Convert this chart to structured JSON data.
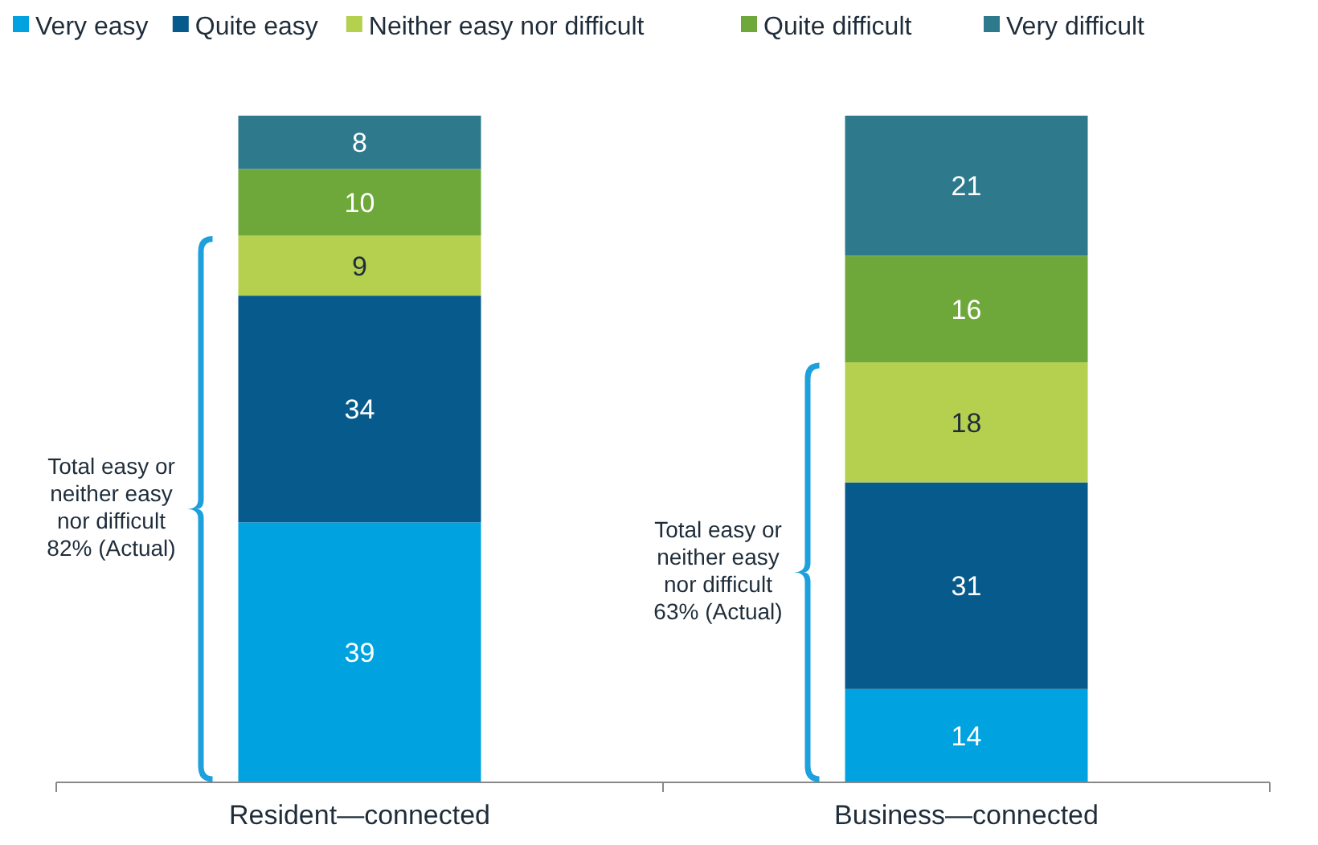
{
  "chart_data": {
    "type": "bar",
    "stacked": true,
    "categories": [
      "Resident—connected",
      "Business—connected"
    ],
    "series": [
      {
        "name": "Very easy",
        "color": "#00a3e0",
        "values": [
          39,
          14
        ]
      },
      {
        "name": "Quite easy",
        "color": "#075b8c",
        "values": [
          34,
          31
        ]
      },
      {
        "name": "Neither easy nor difficult",
        "color": "#b5cf4f",
        "values": [
          9,
          18
        ]
      },
      {
        "name": "Quite difficult",
        "color": "#6fa83a",
        "values": [
          10,
          16
        ]
      },
      {
        "name": "Very difficult",
        "color": "#2e7a8c",
        "values": [
          8,
          21
        ]
      }
    ],
    "data_labels": true,
    "legend": "top",
    "tick_labels": "x",
    "annotations": [
      "Total easy or neither easy nor difficult 82% (Actual)",
      "Total easy or neither easy nor difficult 63% (Actual)"
    ]
  }
}
